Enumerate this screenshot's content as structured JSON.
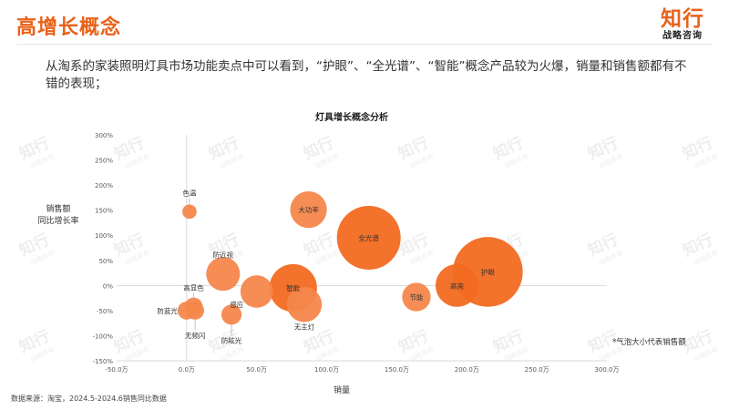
{
  "header": {
    "title": "高增长概念",
    "logo_main": "知行",
    "logo_sub": "战略咨询"
  },
  "intro_text": "从淘系的家装照明灯具市场功能卖点中可以看到，“护眼”、“全光谱”、“智能”概念产品较为火爆，销量和销售额都有不错的表现；",
  "watermark": {
    "main": "知行",
    "sub": "战略咨询"
  },
  "footnote": "数据来源：淘宝，2024.5-2024.6销售同比数据",
  "bubble_note": "*气泡大小代表销售额",
  "colors": {
    "accent": "#e8621a",
    "bubble": "#f26a21",
    "bubble_light": "#f4874b"
  },
  "chart_data": {
    "type": "scatter",
    "title": "灯具增长概念分析",
    "xlabel": "销量",
    "ylabel_lines": [
      "销售额",
      "同比增长率"
    ],
    "xlim": [
      -500000,
      3000000
    ],
    "ylim": [
      -150,
      300
    ],
    "x_ticks": [
      "-50.0万",
      "0.0万",
      "50.0万",
      "100.0万",
      "150.0万",
      "200.0万",
      "250.0万",
      "300.0万"
    ],
    "y_ticks": [
      "300%",
      "250%",
      "200%",
      "150%",
      "100%",
      "50%",
      "0%",
      "-50%",
      "-100%",
      "-150%"
    ],
    "points": [
      {
        "label": "色温",
        "x": 20000,
        "y": 147,
        "size": 0.05,
        "label_pos": "above-line"
      },
      {
        "label": "大功率",
        "x": 870000,
        "y": 151,
        "size": 0.33,
        "label_pos": "center"
      },
      {
        "label": "全光谱",
        "x": 1300000,
        "y": 95,
        "size": 1.0,
        "label_pos": "center"
      },
      {
        "label": "护眼",
        "x": 2150000,
        "y": 27,
        "size": 1.2,
        "label_pos": "center"
      },
      {
        "label": "防近视",
        "x": 260000,
        "y": 23,
        "size": 0.28,
        "label_pos": "above-line"
      },
      {
        "label": "感应",
        "x": 500000,
        "y": -12,
        "size": 0.26,
        "label_pos": "below-left"
      },
      {
        "label": "智能",
        "x": 760000,
        "y": -5,
        "size": 0.56,
        "label_pos": "center"
      },
      {
        "label": "无主灯",
        "x": 840000,
        "y": -38,
        "size": 0.3,
        "label_pos": "below"
      },
      {
        "label": "节能",
        "x": 1640000,
        "y": -23,
        "size": 0.2,
        "label_pos": "center"
      },
      {
        "label": "高亮",
        "x": 1930000,
        "y": 0,
        "size": 0.45,
        "label_pos": "center"
      },
      {
        "label": "高显色",
        "x": 50000,
        "y": -42,
        "size": 0.08,
        "label_pos": "above-line"
      },
      {
        "label": "防蓝光",
        "x": 0,
        "y": -50,
        "size": 0.08,
        "label_pos": "left-line"
      },
      {
        "label": "无频闪",
        "x": 60000,
        "y": -50,
        "size": 0.08,
        "label_pos": "below-line"
      },
      {
        "label": "防眩光",
        "x": 320000,
        "y": -58,
        "size": 0.1,
        "label_pos": "below-line"
      }
    ]
  }
}
